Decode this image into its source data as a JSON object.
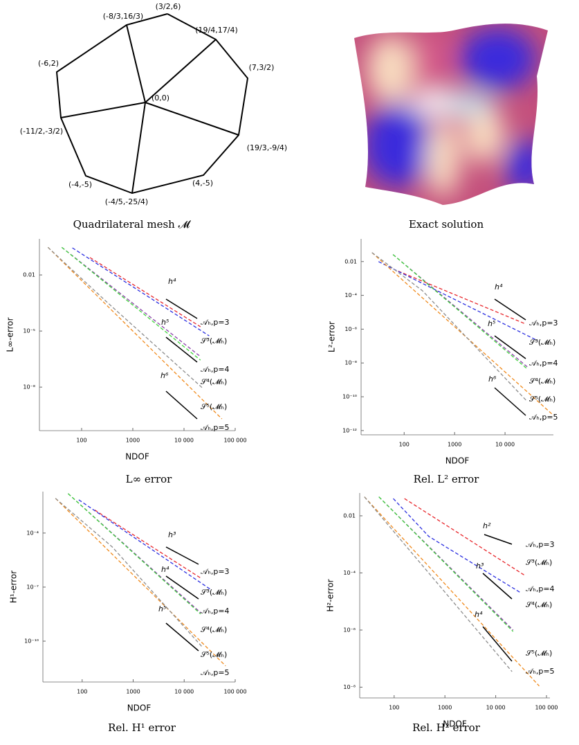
{
  "mesh": {
    "caption": "Quadrilateral mesh 𝓜",
    "vertices": [
      "(0,0)",
      "(3/2,6)",
      "(-8/3,16/3)",
      "(19/4,17/4)",
      "(7,3/2)",
      "(19/3,-9/4)",
      "(4,-5)",
      "(-4/5,-25/4)",
      "(-4,-5)",
      "(-11/2,-3/2)",
      "(-6,2)"
    ]
  },
  "surface": {
    "caption": "Exact solution"
  },
  "chart_data": [
    {
      "type": "line",
      "title": "L∞ error",
      "x_label": "NDOF",
      "y_label": "L∞-error",
      "xscale": "log",
      "yscale": "log",
      "line_style": "dashed",
      "xlim": [
        15,
        100000
      ],
      "xticks": [
        100,
        1000,
        {
          "value": 10000,
          "label": "10 000"
        },
        {
          "value": 100000,
          "label": "100 000"
        }
      ],
      "ylim": [
        4.7e-11,
        0.85
      ],
      "yticks": [
        0.01,
        {
          "value": 1e-05,
          "label": "10⁻⁵"
        },
        {
          "value": 1e-08,
          "label": "10⁻⁸"
        }
      ],
      "annotations": [
        "h⁴",
        "h⁵",
        "h⁶"
      ],
      "series": [
        {
          "name": "𝒜ₕ,p=3",
          "color": "#e8262b",
          "x": [
            146,
            21000
          ],
          "values": [
            0.085,
            1.7e-05
          ]
        },
        {
          "name": "𝒮³(𝓜ₕ)",
          "color": "#2b2fe0",
          "x": [
            66,
            31000
          ],
          "values": [
            0.28,
            5.5e-06
          ]
        },
        {
          "name": "𝒜ₕ,p=4",
          "color": "#8a3fa8",
          "x": [
            41,
            21000
          ],
          "values": [
            0.3,
            4.3e-07
          ]
        },
        {
          "name": "𝒮⁴(𝓜ₕ)",
          "color": "#3ed43a",
          "x": [
            41,
            21000
          ],
          "values": [
            0.3,
            2.8e-07
          ]
        },
        {
          "name": "𝒮⁵(𝓜ₕ)",
          "color": "#f08a1c",
          "x": [
            22,
            55000
          ],
          "values": [
            0.3,
            2e-10
          ]
        },
        {
          "name": "𝒜ₕ,p=5",
          "color": "#8c8c8c",
          "x": [
            22,
            320,
            23000
          ],
          "values": [
            0.3,
            0.00033,
            9e-09
          ]
        }
      ]
    },
    {
      "type": "line",
      "title": "Rel. L² error",
      "x_label": "NDOF",
      "y_label": "L²-error",
      "xscale": "log",
      "yscale": "log",
      "line_style": "dashed",
      "xlim": [
        14,
        91000
      ],
      "xticks": [
        100,
        1000,
        {
          "value": 10000,
          "label": "10 000"
        }
      ],
      "ylim": [
        5.6e-13,
        0.22
      ],
      "yticks": [
        0.01,
        {
          "value": 0.0001,
          "label": "10⁻⁴"
        },
        {
          "value": 1e-06,
          "label": "10⁻⁶"
        },
        {
          "value": 1e-08,
          "label": "10⁻⁸"
        },
        {
          "value": 1e-10,
          "label": "10⁻¹⁰"
        },
        {
          "value": 1e-12,
          "label": "10⁻¹²"
        }
      ],
      "annotations": [
        "h⁴",
        "h⁵",
        "h⁶"
      ],
      "series": [
        {
          "name": "𝒜ₕ,p=3",
          "color": "#e8262b",
          "x": [
            76,
            26000
          ],
          "values": [
            0.0027,
            2e-06
          ]
        },
        {
          "name": "𝒮³(𝓜ₕ)",
          "color": "#2b2fe0",
          "x": [
            31,
            44000
          ],
          "values": [
            0.01,
            2.1e-07
          ]
        },
        {
          "name": "𝒜ₕ,p=4",
          "color": "#8a3fa8",
          "x": [
            60,
            27500
          ],
          "values": [
            0.026,
            5.9e-09
          ]
        },
        {
          "name": "𝒮⁴(𝓜ₕ)",
          "color": "#3ed43a",
          "x": [
            60,
            27500
          ],
          "values": [
            0.026,
            4.5e-09
          ]
        },
        {
          "name": "𝒮⁵(𝓜ₕ)",
          "color": "#f08a1c",
          "x": [
            23,
            91000
          ],
          "values": [
            0.034,
            8e-12
          ]
        },
        {
          "name": "𝒜ₕ,p=5",
          "color": "#8c8c8c",
          "x": [
            23,
            230,
            26000
          ],
          "values": [
            0.034,
            0.00019,
            6.3e-11
          ]
        }
      ]
    },
    {
      "type": "line",
      "title": "Rel. H¹ error",
      "x_label": "NDOF",
      "y_label": "H¹-error",
      "xscale": "log",
      "yscale": "log",
      "line_style": "dashed",
      "xlim": [
        17,
        100000
      ],
      "xticks": [
        100,
        1000,
        {
          "value": 10000,
          "label": "10 000"
        },
        {
          "value": 100000,
          "label": "100 000"
        }
      ],
      "ylim": [
        5.4e-13,
        0.02
      ],
      "yticks": [
        {
          "value": 0.0001,
          "label": "10⁻⁴"
        },
        {
          "value": 1e-07,
          "label": "10⁻⁷"
        },
        {
          "value": 1e-10,
          "label": "10⁻¹⁰"
        }
      ],
      "annotations": [
        "h³",
        "h⁴",
        "h⁵"
      ],
      "series": [
        {
          "name": "𝒜ₕ,p=3",
          "color": "#e8262b",
          "x": [
            176,
            21000
          ],
          "values": [
            0.0019,
            3.2e-07
          ]
        },
        {
          "name": "𝒮³(𝓜ₕ)",
          "color": "#2b2fe0",
          "x": [
            86,
            34000
          ],
          "values": [
            0.007,
            7e-08
          ]
        },
        {
          "name": "𝒜ₕ,p=4",
          "color": "#8a3fa8",
          "x": [
            53,
            21000
          ],
          "values": [
            0.0155,
            3.8e-09
          ]
        },
        {
          "name": "𝒮⁴(𝓜ₕ)",
          "color": "#3ed43a",
          "x": [
            53,
            21000
          ],
          "values": [
            0.0155,
            3.2e-09
          ]
        },
        {
          "name": "𝒮⁵(𝓜ₕ)",
          "color": "#f08a1c",
          "x": [
            30,
            65000
          ],
          "values": [
            0.0084,
            4.2e-12
          ]
        },
        {
          "name": "𝒜ₕ,p=5",
          "color": "#8c8c8c",
          "x": [
            30,
            388,
            23000
          ],
          "values": [
            0.0084,
            1.7e-05,
            4.5e-11
          ]
        }
      ]
    },
    {
      "type": "line",
      "title": "Rel. H² error",
      "x_label": "NDOF",
      "y_label": "H²-error",
      "xscale": "log",
      "yscale": "log",
      "line_style": "dashed",
      "xlim": [
        21,
        117000
      ],
      "xticks": [
        100,
        1000,
        {
          "value": 10000,
          "label": "10 000"
        },
        {
          "value": 100000,
          "label": "100 000"
        }
      ],
      "ylim": [
        4.2e-09,
        0.063
      ],
      "yticks": [
        0.01,
        {
          "value": 0.0001,
          "label": "10⁻⁴"
        },
        {
          "value": 1e-06,
          "label": "10⁻⁶"
        },
        {
          "value": 1e-08,
          "label": "10⁻⁸"
        }
      ],
      "annotations": [
        "h²",
        "h³",
        "h⁴"
      ],
      "series": [
        {
          "name": "𝒜ₕ,p=3",
          "color": "#e8262b",
          "x": [
            160,
            39000
          ],
          "values": [
            0.04,
            7.8e-05
          ]
        },
        {
          "name": "𝒮³(𝓜ₕ)",
          "color": "#2b2fe0",
          "x": [
            96,
            480,
            30000
          ],
          "values": [
            0.04,
            0.0019,
            2.1e-05
          ]
        },
        {
          "name": "𝒜ₕ,p=4",
          "color": "#8a3fa8",
          "x": [
            50,
            22000
          ],
          "values": [
            0.046,
            1e-06
          ]
        },
        {
          "name": "𝒮⁴(𝓜ₕ)",
          "color": "#3ed43a",
          "x": [
            50,
            22000
          ],
          "values": [
            0.046,
            8.9e-07
          ]
        },
        {
          "name": "𝒮⁵(𝓜ₕ)",
          "color": "#f08a1c",
          "x": [
            26,
            72000
          ],
          "values": [
            0.046,
            1.1e-08
          ]
        },
        {
          "name": "𝒜ₕ,p=5",
          "color": "#8c8c8c",
          "x": [
            26,
            21000
          ],
          "values": [
            0.046,
            3.5e-08
          ]
        }
      ]
    }
  ]
}
